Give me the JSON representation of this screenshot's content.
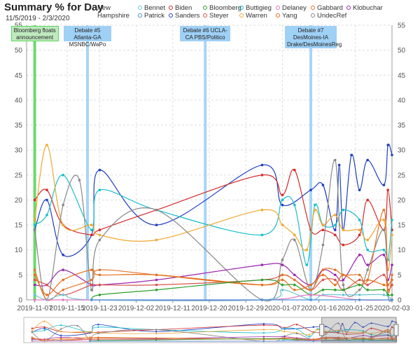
{
  "header": {
    "title": "Summary % for Day",
    "date_range": "11/5/2019 - 2/3/2020",
    "region_line1": "New",
    "region_line2": "Hampshire"
  },
  "legend": [
    {
      "name": "Bennet",
      "color": "#6cc5d5"
    },
    {
      "name": "Biden",
      "color": "#d62728"
    },
    {
      "name": "Bloomberg",
      "color": "#2ca02c"
    },
    {
      "name": "Buttigieg",
      "color": "#17becf"
    },
    {
      "name": "Delaney",
      "color": "#e377c2"
    },
    {
      "name": "Gabbard",
      "color": "#e0762b"
    },
    {
      "name": "Klobuchar",
      "color": "#9b27b0"
    },
    {
      "name": "Patrick",
      "color": "#4a90d9"
    },
    {
      "name": "Sanders",
      "color": "#1f3fbf"
    },
    {
      "name": "Steyer",
      "color": "#d9534f"
    },
    {
      "name": "Warren",
      "color": "#f0a830"
    },
    {
      "name": "Yang",
      "color": "#e8701a"
    },
    {
      "name": "UndecRef",
      "color": "#888888"
    }
  ],
  "annotations": [
    {
      "label": "Bloomberg floats announcement",
      "date": "2019-11-07",
      "color": "#5cd65c",
      "box_color": "#bfe9bf"
    },
    {
      "label": "Debate #5 Atlanta-GA MSNBC/WaPo",
      "date": "2019-11-20",
      "color": "#9fd0f5",
      "box_color": "#9fd0f5"
    },
    {
      "label": "Debate #6 UCLA-CA PBS/Politico",
      "date": "2019-12-19",
      "color": "#9fd0f5",
      "box_color": "#9fd0f5"
    },
    {
      "label": "Debate #7 DesMoines-IA Drake/DesMoinesReg",
      "date": "2020-01-14",
      "color": "#9fd0f5",
      "box_color": "#9fd0f5"
    }
  ],
  "chart_data": {
    "type": "line",
    "xlabel": "",
    "ylabel": "",
    "x_range": [
      "2019-11-05",
      "2020-02-03"
    ],
    "ylim": [
      0,
      55
    ],
    "y_ticks": [
      0,
      5,
      10,
      15,
      20,
      25,
      30,
      35,
      40,
      45,
      50,
      55
    ],
    "x_ticks": [
      "2019-11-07",
      "2019-11-15",
      "2019-11-23",
      "2019-12-02",
      "2019-12-11",
      "2019-12-20",
      "2019-12-29",
      "2020-01-07",
      "2020-01-16",
      "2020-01-25",
      "2020-02-03"
    ],
    "grid": true,
    "series": [
      {
        "name": "Sanders",
        "color": "#1f3fbf",
        "points": [
          [
            "2019-11-07",
            14
          ],
          [
            "2019-11-10",
            20
          ],
          [
            "2019-11-14",
            9
          ],
          [
            "2019-11-21",
            13
          ],
          [
            "2019-11-23",
            26
          ],
          [
            "2019-12-07",
            15
          ],
          [
            "2020-01-02",
            27
          ],
          [
            "2020-01-07",
            19
          ],
          [
            "2020-01-14",
            22
          ],
          [
            "2020-01-17",
            23
          ],
          [
            "2020-01-20",
            14
          ],
          [
            "2020-01-21",
            27
          ],
          [
            "2020-01-22",
            14
          ],
          [
            "2020-01-24",
            29
          ],
          [
            "2020-01-26",
            22
          ],
          [
            "2020-01-28",
            28
          ],
          [
            "2020-02-01",
            23
          ],
          [
            "2020-02-02",
            31
          ],
          [
            "2020-02-03",
            29
          ]
        ]
      },
      {
        "name": "Biden",
        "color": "#d62728",
        "points": [
          [
            "2019-11-07",
            20
          ],
          [
            "2019-11-10",
            22
          ],
          [
            "2019-11-14",
            15
          ],
          [
            "2019-11-21",
            13
          ],
          [
            "2019-11-23",
            14
          ],
          [
            "2019-12-07",
            18
          ],
          [
            "2020-01-02",
            25
          ],
          [
            "2020-01-07",
            21
          ],
          [
            "2020-01-10",
            26
          ],
          [
            "2020-01-14",
            14
          ],
          [
            "2020-01-17",
            14
          ],
          [
            "2020-01-20",
            13
          ],
          [
            "2020-01-22",
            11
          ],
          [
            "2020-01-26",
            13
          ],
          [
            "2020-01-28",
            20
          ],
          [
            "2020-02-01",
            14
          ],
          [
            "2020-02-02",
            22
          ],
          [
            "2020-02-03",
            14
          ]
        ]
      },
      {
        "name": "Buttigieg",
        "color": "#17becf",
        "points": [
          [
            "2019-11-07",
            15
          ],
          [
            "2019-11-10",
            17
          ],
          [
            "2019-11-14",
            25
          ],
          [
            "2019-11-21",
            14
          ],
          [
            "2019-11-23",
            22
          ],
          [
            "2019-12-07",
            18
          ],
          [
            "2020-01-02",
            13
          ],
          [
            "2020-01-07",
            20
          ],
          [
            "2020-01-10",
            19
          ],
          [
            "2020-01-13",
            7
          ],
          [
            "2020-01-15",
            19
          ],
          [
            "2020-01-17",
            15
          ],
          [
            "2020-01-20",
            15
          ],
          [
            "2020-01-22",
            18
          ],
          [
            "2020-01-26",
            16
          ],
          [
            "2020-01-28",
            10
          ],
          [
            "2020-02-01",
            10
          ],
          [
            "2020-02-02",
            8
          ],
          [
            "2020-02-03",
            16
          ]
        ]
      },
      {
        "name": "Warren",
        "color": "#f0a830",
        "points": [
          [
            "2019-11-07",
            16
          ],
          [
            "2019-11-10",
            31
          ],
          [
            "2019-11-14",
            15
          ],
          [
            "2019-11-21",
            15
          ],
          [
            "2019-11-23",
            13
          ],
          [
            "2019-12-07",
            12
          ],
          [
            "2020-01-02",
            18
          ],
          [
            "2020-01-07",
            15
          ],
          [
            "2020-01-10",
            13
          ],
          [
            "2020-01-13",
            10
          ],
          [
            "2020-01-15",
            18
          ],
          [
            "2020-01-17",
            15
          ],
          [
            "2020-01-20",
            17
          ],
          [
            "2020-01-22",
            14
          ],
          [
            "2020-01-26",
            14
          ],
          [
            "2020-01-28",
            12
          ],
          [
            "2020-02-01",
            16
          ],
          [
            "2020-02-02",
            6
          ],
          [
            "2020-02-03",
            13
          ]
        ]
      },
      {
        "name": "UndecRef",
        "color": "#888888",
        "points": [
          [
            "2019-11-07",
            14
          ],
          [
            "2019-11-10",
            0
          ],
          [
            "2019-11-14",
            19
          ],
          [
            "2019-11-18",
            24
          ],
          [
            "2019-11-21",
            2
          ],
          [
            "2019-11-23",
            12
          ],
          [
            "2019-12-07",
            18
          ],
          [
            "2020-01-02",
            0
          ],
          [
            "2020-01-07",
            8
          ],
          [
            "2020-01-10",
            12
          ],
          [
            "2020-01-14",
            2
          ],
          [
            "2020-01-17",
            11
          ],
          [
            "2020-01-20",
            28
          ],
          [
            "2020-01-22",
            3
          ],
          [
            "2020-01-26",
            2
          ],
          [
            "2020-01-28",
            6
          ],
          [
            "2020-02-01",
            14
          ],
          [
            "2020-02-02",
            1
          ],
          [
            "2020-02-03",
            0
          ]
        ]
      },
      {
        "name": "Klobuchar",
        "color": "#9b27b0",
        "points": [
          [
            "2019-11-07",
            3
          ],
          [
            "2019-11-10",
            3
          ],
          [
            "2019-11-14",
            6
          ],
          [
            "2019-11-21",
            3
          ],
          [
            "2019-11-23",
            3
          ],
          [
            "2019-12-07",
            4
          ],
          [
            "2020-01-02",
            7
          ],
          [
            "2020-01-07",
            7
          ],
          [
            "2020-01-10",
            5
          ],
          [
            "2020-01-14",
            3
          ],
          [
            "2020-01-17",
            6
          ],
          [
            "2020-01-20",
            5
          ],
          [
            "2020-01-22",
            4
          ],
          [
            "2020-01-26",
            9
          ],
          [
            "2020-01-28",
            7
          ],
          [
            "2020-02-01",
            9
          ],
          [
            "2020-02-02",
            4
          ],
          [
            "2020-02-03",
            7
          ]
        ]
      },
      {
        "name": "Steyer",
        "color": "#d9534f",
        "points": [
          [
            "2019-11-07",
            4
          ],
          [
            "2019-11-10",
            3
          ],
          [
            "2019-11-14",
            1
          ],
          [
            "2019-11-21",
            3
          ],
          [
            "2019-11-23",
            3
          ],
          [
            "2019-12-07",
            3
          ],
          [
            "2020-01-02",
            4
          ],
          [
            "2020-01-07",
            5
          ],
          [
            "2020-01-10",
            4
          ],
          [
            "2020-01-14",
            2
          ],
          [
            "2020-01-17",
            4
          ],
          [
            "2020-01-20",
            4
          ],
          [
            "2020-01-22",
            2
          ],
          [
            "2020-01-26",
            4
          ],
          [
            "2020-01-28",
            3
          ],
          [
            "2020-02-01",
            5
          ],
          [
            "2020-02-02",
            2
          ],
          [
            "2020-02-03",
            3
          ]
        ]
      },
      {
        "name": "Gabbard",
        "color": "#e0762b",
        "points": [
          [
            "2019-11-07",
            6
          ],
          [
            "2019-11-10",
            0
          ],
          [
            "2019-11-14",
            2
          ],
          [
            "2019-11-21",
            4
          ],
          [
            "2019-11-23",
            6
          ],
          [
            "2019-12-07",
            5
          ],
          [
            "2020-01-02",
            3
          ],
          [
            "2020-01-07",
            5
          ],
          [
            "2020-01-10",
            4
          ],
          [
            "2020-01-14",
            2
          ],
          [
            "2020-01-17",
            6
          ],
          [
            "2020-01-20",
            6
          ],
          [
            "2020-01-22",
            5
          ],
          [
            "2020-01-26",
            5
          ],
          [
            "2020-01-28",
            4
          ],
          [
            "2020-02-01",
            18
          ],
          [
            "2020-02-02",
            2
          ],
          [
            "2020-02-03",
            5
          ]
        ]
      },
      {
        "name": "Yang",
        "color": "#e8701a",
        "points": [
          [
            "2019-11-07",
            5
          ],
          [
            "2019-11-10",
            1
          ],
          [
            "2019-11-14",
            4
          ],
          [
            "2019-11-21",
            6
          ],
          [
            "2019-11-23",
            5
          ],
          [
            "2019-12-07",
            5
          ],
          [
            "2020-01-02",
            3
          ],
          [
            "2020-01-07",
            4
          ],
          [
            "2020-01-10",
            2
          ],
          [
            "2020-01-14",
            3
          ],
          [
            "2020-01-17",
            5
          ],
          [
            "2020-01-20",
            3
          ],
          [
            "2020-01-22",
            5
          ],
          [
            "2020-01-26",
            3
          ],
          [
            "2020-01-28",
            4
          ],
          [
            "2020-02-01",
            3
          ],
          [
            "2020-02-02",
            3
          ],
          [
            "2020-02-03",
            4
          ]
        ]
      },
      {
        "name": "Bloomberg",
        "color": "#2ca02c",
        "points": [
          [
            "2019-11-21",
            0
          ],
          [
            "2019-11-23",
            1
          ],
          [
            "2019-12-07",
            2
          ],
          [
            "2020-01-02",
            4
          ],
          [
            "2020-01-07",
            3
          ],
          [
            "2020-01-10",
            3
          ],
          [
            "2020-01-14",
            1
          ],
          [
            "2020-01-17",
            2
          ],
          [
            "2020-01-20",
            2
          ],
          [
            "2020-01-22",
            2
          ],
          [
            "2020-01-26",
            3
          ],
          [
            "2020-01-28",
            2
          ],
          [
            "2020-02-01",
            2
          ],
          [
            "2020-02-02",
            1
          ],
          [
            "2020-02-03",
            1
          ]
        ]
      },
      {
        "name": "Bennet",
        "color": "#6cc5d5",
        "points": [
          [
            "2019-11-07",
            1
          ],
          [
            "2019-11-10",
            0
          ],
          [
            "2019-11-14",
            1
          ],
          [
            "2019-11-21",
            0
          ],
          [
            "2020-01-02",
            0
          ],
          [
            "2020-01-07",
            2
          ],
          [
            "2020-01-14",
            0
          ],
          [
            "2020-01-17",
            1
          ],
          [
            "2020-01-22",
            1
          ],
          [
            "2020-01-26",
            1
          ],
          [
            "2020-02-01",
            1
          ],
          [
            "2020-02-03",
            0
          ]
        ]
      },
      {
        "name": "Delaney",
        "color": "#e377c2",
        "points": [
          [
            "2019-11-07",
            0
          ],
          [
            "2019-11-14",
            0
          ],
          [
            "2020-01-02",
            0
          ],
          [
            "2020-01-14",
            1
          ],
          [
            "2020-01-26",
            0
          ],
          [
            "2020-02-03",
            0
          ]
        ]
      },
      {
        "name": "Patrick",
        "color": "#4a90d9",
        "points": [
          [
            "2019-11-21",
            0
          ],
          [
            "2020-01-02",
            0
          ],
          [
            "2020-01-14",
            0
          ],
          [
            "2020-01-26",
            0
          ],
          [
            "2020-02-03",
            0
          ]
        ]
      }
    ]
  }
}
